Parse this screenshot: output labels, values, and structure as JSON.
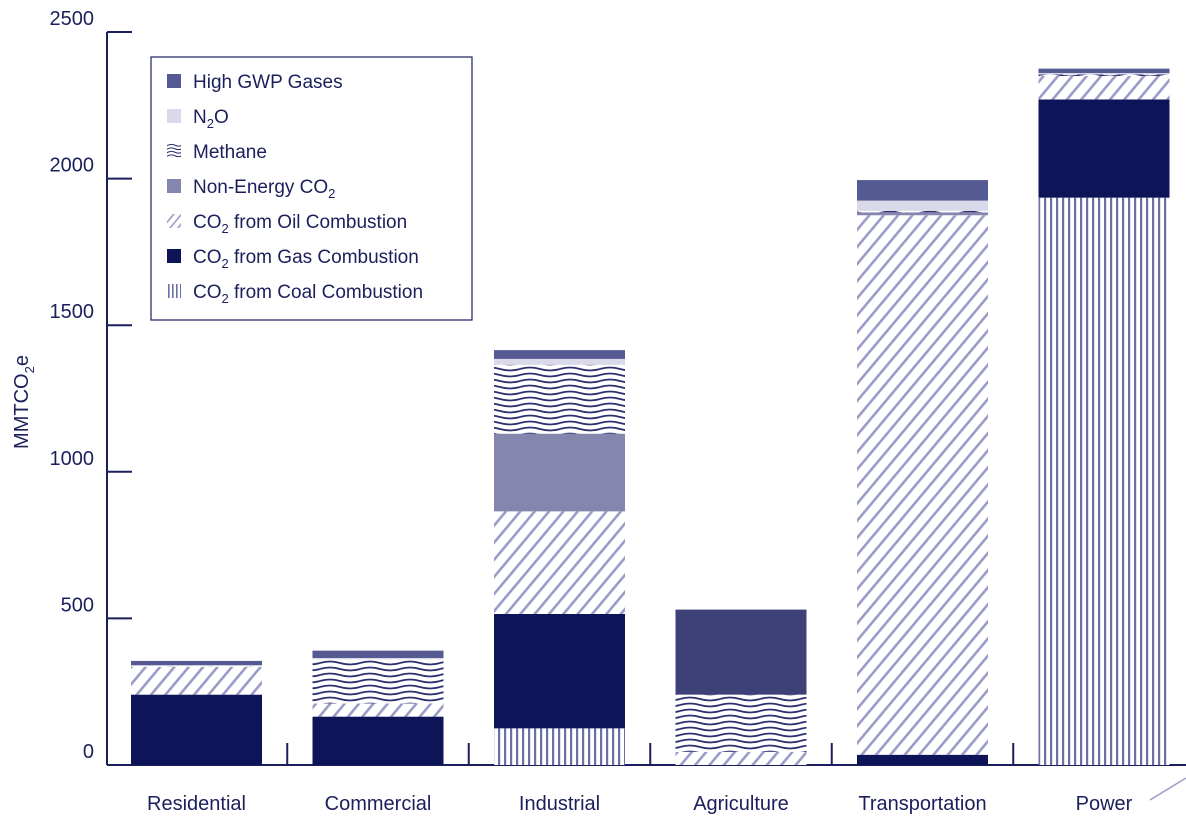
{
  "chart_data": {
    "type": "bar",
    "stacked": true,
    "ylabel": "MMTCO2e",
    "ylim": [
      0,
      2500
    ],
    "yticks": [
      0,
      500,
      1000,
      1500,
      2000,
      2500
    ],
    "grid": false,
    "legend_position": "top-left",
    "categories": [
      "Residential",
      "Commercial",
      "Industrial",
      "Agriculture",
      "Transportation",
      "Power"
    ],
    "series": [
      {
        "name": "CO2 from Coal Combustion",
        "label_main": "CO",
        "label_sub": "2",
        "label_rest": " from Coal Combustion",
        "pattern": "vertical",
        "color": "#6b6fa8",
        "values": [
          0,
          0,
          125,
          0,
          0,
          1935
        ]
      },
      {
        "name": "CO2 from Gas Combustion",
        "label_main": "CO",
        "label_sub": "2",
        "label_rest": " from Gas Combustion",
        "pattern": "solid",
        "color": "#0d1558",
        "values": [
          240,
          165,
          390,
          0,
          35,
          335
        ]
      },
      {
        "name": "CO2 from Oil Combustion",
        "label_main": "CO",
        "label_sub": "2",
        "label_rest": " from Oil Combustion",
        "pattern": "diagonal",
        "color": "#9a9cc8",
        "values": [
          95,
          45,
          350,
          45,
          1840,
          80
        ]
      },
      {
        "name": "Non-Energy CO2",
        "label_main": "Non-Energy CO",
        "label_sub": "2",
        "label_rest": "",
        "pattern": "solid",
        "color": "#8586ae",
        "values": [
          0,
          0,
          265,
          0,
          10,
          0
        ]
      },
      {
        "name": "Methane",
        "label_main": "Methane",
        "label_sub": "",
        "label_rest": "",
        "pattern": "wavy",
        "color": "#2d3170",
        "values": [
          5,
          150,
          235,
          195,
          5,
          5
        ]
      },
      {
        "name": "N2O",
        "label_main": "N",
        "label_sub": "2",
        "label_rest": "O",
        "pattern": "solid",
        "color": "#d9d9ea",
        "values": [
          0,
          5,
          20,
          0,
          35,
          5
        ]
      },
      {
        "name": "High GWP Gases",
        "label_main": "High GWP Gases",
        "label_sub": "",
        "label_rest": "",
        "pattern": "solid",
        "color": "#565a92",
        "values": [
          15,
          25,
          30,
          290,
          70,
          15
        ]
      }
    ],
    "legend_order": [
      "High GWP Gases",
      "N2O",
      "Methane",
      "Non-Energy CO2",
      "CO2 from Oil Combustion",
      "CO2 from Gas Combustion",
      "CO2 from Coal Combustion"
    ]
  },
  "colors": {
    "axis": "#1b1f5c",
    "text": "#1b1f5c",
    "agriculture_high_gwp": "#3e4078"
  }
}
